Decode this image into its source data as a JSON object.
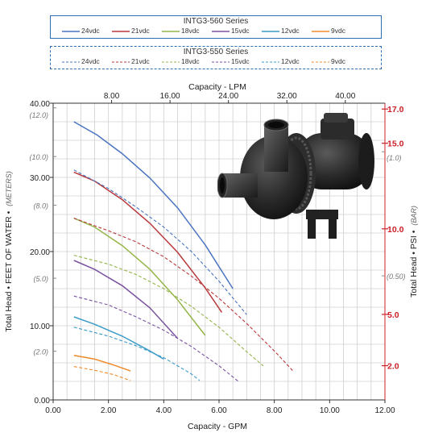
{
  "chart_data": {
    "type": "line",
    "x_bottom": {
      "label": "Capacity - GPM",
      "range": [
        0,
        12
      ],
      "ticks": [
        "0.00",
        "2.00",
        "4.00",
        "6.00",
        "8.00",
        "10.00",
        "12.00"
      ],
      "tick_values": [
        0,
        2,
        4,
        6,
        8,
        10,
        12
      ]
    },
    "x_top": {
      "label": "Capacity - LPM",
      "ticks": [
        "8.00",
        "16.00",
        "24.00",
        "32.00",
        "40.00"
      ],
      "tick_values": [
        8,
        16,
        24,
        32,
        40
      ]
    },
    "y_left": {
      "label_main": "Total Head • FEET OF WATER •",
      "label_unit": "(METERS)",
      "range": [
        0,
        40
      ],
      "major_ticks": [
        "0.00",
        "10.00",
        "20.00",
        "30.00",
        "40.00"
      ],
      "major_values": [
        0,
        10,
        20,
        30,
        40
      ],
      "meter_ticks": [
        "(12.0)",
        "(10.0)",
        "(8.0)",
        "(5.0)",
        "(2.0)"
      ],
      "meter_values": [
        12,
        10,
        8,
        5,
        2
      ]
    },
    "y_right": {
      "label_main": "Total Head • PSI •",
      "label_unit": "(BAR)",
      "psi_ticks": [
        "17.0",
        "15.0",
        "10.0",
        "5.0",
        "2.0"
      ],
      "psi_values": [
        17,
        15,
        10,
        5,
        2
      ],
      "bar_ticks": [
        "(1.0)",
        "(0.50)"
      ],
      "bar_values": [
        1.0,
        0.5
      ]
    },
    "grid": true,
    "colors": {
      "24vdc": "#4a74c0",
      "21vdc": "#b8393c",
      "18vdc": "#94b548",
      "15vdc": "#7a52a0",
      "12vdc": "#3c9cc8",
      "9vdc": "#ef8a2b",
      "axis_right": "#cc2027",
      "legend_border": "#2f6db3"
    },
    "legend_solid": {
      "title": "INTG3-560 Series",
      "entries": [
        "24vdc",
        "21vdc",
        "18vdc",
        "15vdc",
        "12vdc",
        "9vdc"
      ]
    },
    "legend_dashed": {
      "title": "INTG3-550 Series",
      "entries": [
        "24vdc",
        "21vdc",
        "18vdc",
        "15vdc",
        "12vdc",
        "9vdc"
      ]
    },
    "series": [
      {
        "name": "24vdc",
        "model": "INTG3-560 Series",
        "style": "solid",
        "color": "#4a74c0",
        "x": [
          0.75,
          1.6,
          2.5,
          3.5,
          4.5,
          5.5,
          6.5
        ],
        "y": [
          37.5,
          35.7,
          33.2,
          29.9,
          25.9,
          20.9,
          15.0
        ]
      },
      {
        "name": "21vdc",
        "model": "INTG3-560 Series",
        "style": "solid",
        "color": "#b8393c",
        "x": [
          0.75,
          1.5,
          2.5,
          3.5,
          4.5,
          5.5,
          6.1
        ],
        "y": [
          30.7,
          29.5,
          27.0,
          23.8,
          19.9,
          15.1,
          11.8
        ]
      },
      {
        "name": "18vdc",
        "model": "INTG3-560 Series",
        "style": "solid",
        "color": "#94b548",
        "x": [
          0.75,
          1.5,
          2.5,
          3.5,
          4.5,
          5.5
        ],
        "y": [
          24.5,
          23.3,
          20.8,
          17.6,
          13.5,
          8.7
        ]
      },
      {
        "name": "15vdc",
        "model": "INTG3-560 Series",
        "style": "solid",
        "color": "#7a52a0",
        "x": [
          0.75,
          1.5,
          2.5,
          3.5,
          4.5
        ],
        "y": [
          18.8,
          17.6,
          15.4,
          12.4,
          8.3
        ]
      },
      {
        "name": "12vdc",
        "model": "INTG3-560 Series",
        "style": "solid",
        "color": "#3c9cc8",
        "x": [
          0.75,
          1.5,
          2.5,
          3.5,
          4.0
        ],
        "y": [
          11.2,
          10.2,
          8.6,
          6.6,
          5.5
        ]
      },
      {
        "name": "9vdc",
        "model": "INTG3-560 Series",
        "style": "solid",
        "color": "#ef8a2b",
        "x": [
          0.75,
          1.5,
          2.2,
          2.8
        ],
        "y": [
          6.0,
          5.5,
          4.7,
          3.9
        ]
      },
      {
        "name": "24vdc",
        "model": "INTG3-550 Series",
        "style": "dashed",
        "color": "#4a74c0",
        "x": [
          0.75,
          2,
          3,
          4,
          5,
          6,
          7
        ],
        "y": [
          31.0,
          28.5,
          26.0,
          23.3,
          20.0,
          16.0,
          11.5
        ]
      },
      {
        "name": "21vdc",
        "model": "INTG3-550 Series",
        "style": "dashed",
        "color": "#b8393c",
        "x": [
          0.75,
          2,
          3,
          4,
          5,
          6,
          7,
          8,
          8.7
        ],
        "y": [
          24.5,
          22.8,
          21.3,
          19.3,
          16.7,
          13.7,
          10.3,
          6.6,
          3.8
        ]
      },
      {
        "name": "18vdc",
        "model": "INTG3-550 Series",
        "style": "dashed",
        "color": "#94b548",
        "x": [
          0.75,
          2,
          3,
          4,
          5,
          6,
          7,
          7.6
        ],
        "y": [
          19.5,
          18.3,
          16.9,
          15.0,
          12.6,
          9.8,
          6.5,
          4.6
        ]
      },
      {
        "name": "15vdc",
        "model": "INTG3-550 Series",
        "style": "dashed",
        "color": "#7a52a0",
        "x": [
          0.75,
          2,
          3,
          4,
          5,
          6,
          6.7
        ],
        "y": [
          14.0,
          12.8,
          11.2,
          9.4,
          7.2,
          4.6,
          2.5
        ]
      },
      {
        "name": "12vdc",
        "model": "INTG3-550 Series",
        "style": "dashed",
        "color": "#3c9cc8",
        "x": [
          0.75,
          2,
          3,
          4,
          5,
          5.3
        ],
        "y": [
          9.8,
          8.6,
          7.3,
          5.7,
          3.5,
          2.6
        ]
      },
      {
        "name": "9vdc",
        "model": "INTG3-550 Series",
        "style": "dashed",
        "color": "#ef8a2b",
        "x": [
          0.75,
          1.5,
          2.2,
          2.8
        ],
        "y": [
          4.5,
          4.0,
          3.4,
          2.6
        ]
      }
    ]
  }
}
